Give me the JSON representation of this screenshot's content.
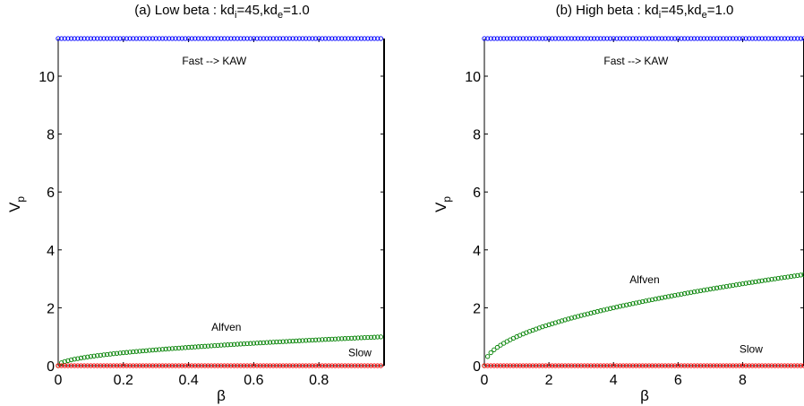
{
  "chart_data": [
    {
      "type": "scatter",
      "title_parts": [
        "(a) Low beta : kd",
        "i",
        "=45,kd",
        "e",
        "=1.0"
      ],
      "xlabel": "β",
      "ylabel_main": "V",
      "ylabel_sub": "p",
      "xlim": [
        0,
        1.0
      ],
      "ylim": [
        0,
        11.3
      ],
      "x_ticks": [
        0,
        0.2,
        0.4,
        0.6,
        0.8
      ],
      "x_tick_labels": [
        "0",
        "0.2",
        "0.4",
        "0.6",
        "0.8"
      ],
      "y_ticks": [
        0,
        2,
        4,
        6,
        8,
        10
      ],
      "y_tick_labels": [
        "0",
        "2",
        "4",
        "6",
        "8",
        "10"
      ],
      "grid": false,
      "x_start": 0.0,
      "x_end": 0.99,
      "n_points": 100,
      "series": [
        {
          "name": "Fast --> KAW",
          "formula": "constant",
          "const_value": 11.3,
          "color": "#0000ff"
        },
        {
          "name": "Alfven",
          "formula": "sqrt",
          "coef": 1.0,
          "color": "#008000"
        },
        {
          "name": "Slow",
          "formula": "constant",
          "const_value": 0.0,
          "color": "#ff0000"
        }
      ],
      "annotations": [
        {
          "text": "Fast --> KAW",
          "x": 0.38,
          "y": 10.4
        },
        {
          "text": "Alfven",
          "x": 0.47,
          "y": 1.2
        },
        {
          "text": "Slow",
          "x": 0.89,
          "y": 0.32
        }
      ]
    },
    {
      "type": "scatter",
      "title_parts": [
        "(b) High beta : kd",
        "i",
        "=45,kd",
        "e",
        "=1.0"
      ],
      "xlabel": "β",
      "ylabel_main": "V",
      "ylabel_sub": "p",
      "xlim": [
        0,
        9.9
      ],
      "ylim": [
        0,
        11.3
      ],
      "x_ticks": [
        0,
        2,
        4,
        6,
        8
      ],
      "x_tick_labels": [
        "0",
        "2",
        "4",
        "6",
        "8"
      ],
      "y_ticks": [
        0,
        2,
        4,
        6,
        8,
        10
      ],
      "y_tick_labels": [
        "0",
        "2",
        "4",
        "6",
        "8",
        "10"
      ],
      "grid": false,
      "x_start": 0.0,
      "x_end": 9.9,
      "n_points": 100,
      "series": [
        {
          "name": "Fast --> KAW",
          "formula": "constant",
          "const_value": 11.3,
          "color": "#0000ff"
        },
        {
          "name": "Alfven",
          "formula": "sqrt",
          "coef": 1.0,
          "color": "#008000"
        },
        {
          "name": "Slow",
          "formula": "constant",
          "const_value": 0.0,
          "color": "#ff0000"
        }
      ],
      "annotations": [
        {
          "text": "Fast --> KAW",
          "x": 3.7,
          "y": 10.4
        },
        {
          "text": "Alfven",
          "x": 4.5,
          "y": 2.85
        },
        {
          "text": "Slow",
          "x": 7.9,
          "y": 0.45
        }
      ]
    }
  ]
}
